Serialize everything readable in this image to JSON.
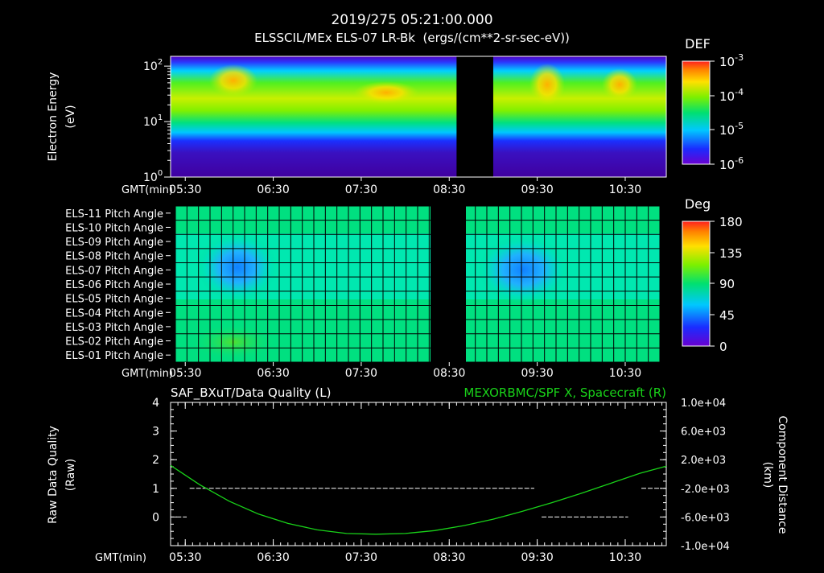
{
  "header": {
    "title": "2019/275 05:21:00.000",
    "subtitle": "ELSSCIL/MEx ELS-07 LR-Bk  (ergs/(cm**2-sr-sec-eV))"
  },
  "colors": {
    "background": "#000000",
    "text": "#ffffff",
    "green_trace": "#19d219",
    "quality_trace": "#ffffff"
  },
  "chart_data": [
    {
      "type": "heatmap",
      "name": "electron-energy-spectrogram",
      "ylabel": "Electron Energy",
      "yunits": "(eV)",
      "yscale": "log",
      "ylim": [
        1,
        150
      ],
      "y_ticks": [
        {
          "label": "10",
          "exp": "2",
          "value": 100
        },
        {
          "label": "10",
          "exp": "1",
          "value": 10
        },
        {
          "label": "10",
          "exp": "0",
          "value": 1
        }
      ],
      "xlabel": "GMT(min)",
      "xlim_min": [
        320,
        658
      ],
      "x_ticks": [
        {
          "label": "05:30",
          "min": 330
        },
        {
          "label": "06:30",
          "min": 390
        },
        {
          "label": "07:30",
          "min": 450
        },
        {
          "label": "08:30",
          "min": 510
        },
        {
          "label": "09:30",
          "min": 570
        },
        {
          "label": "10:30",
          "min": 630
        }
      ],
      "data_gap_min": [
        515,
        540
      ],
      "colorbar": {
        "label": "DEF",
        "ticks": [
          {
            "label": "10",
            "exp": "-3"
          },
          {
            "label": "10",
            "exp": "-4"
          },
          {
            "label": "10",
            "exp": "-5"
          },
          {
            "label": "10",
            "exp": "-6"
          }
        ]
      }
    },
    {
      "type": "heatmap",
      "name": "pitch-angle-grid",
      "rows": [
        "ELS-11 Pitch Angle",
        "ELS-10 Pitch Angle",
        "ELS-09 Pitch Angle",
        "ELS-08 Pitch Angle",
        "ELS-07 Pitch Angle",
        "ELS-06 Pitch Angle",
        "ELS-05 Pitch Angle",
        "ELS-04 Pitch Angle",
        "ELS-03 Pitch Angle",
        "ELS-02 Pitch Angle",
        "ELS-01 Pitch Angle"
      ],
      "xlabel": "GMT(min)",
      "xlim_min": [
        320,
        658
      ],
      "x_ticks": [
        {
          "label": "05:30",
          "min": 330
        },
        {
          "label": "06:30",
          "min": 390
        },
        {
          "label": "07:30",
          "min": 450
        },
        {
          "label": "08:30",
          "min": 510
        },
        {
          "label": "09:30",
          "min": 570
        },
        {
          "label": "10:30",
          "min": 630
        }
      ],
      "data_gap_min": [
        515,
        540
      ],
      "colorbar": {
        "label": "Deg",
        "range": [
          0,
          180
        ],
        "ticks": [
          "180",
          "135",
          "90",
          "45",
          "0"
        ]
      }
    },
    {
      "type": "line",
      "name": "data-quality-and-spacecraft-x",
      "title_left": "SAF_BXuT/Data Quality (L)",
      "title_right": "MEXORBMC/SPF X, Spacecraft (R)",
      "ylabel_left": "Raw Data Quality",
      "ylabel_left_units": "(Raw)",
      "ylim_left": [
        -1,
        4
      ],
      "yticks_left": [
        "4",
        "3",
        "2",
        "1",
        "0"
      ],
      "ylabel_right": "Component Distance",
      "ylabel_right_units": "(km)",
      "ylim_right": [
        -10000,
        10000
      ],
      "yticks_right": [
        "1.0e+04",
        "6.0e+03",
        "2.0e+03",
        "-2.0e+03",
        "-6.0e+03",
        "-1.0e+04"
      ],
      "xlabel": "GMT(min)",
      "xlim_min": [
        320,
        658
      ],
      "x_ticks": [
        {
          "label": "05:30",
          "min": 330
        },
        {
          "label": "06:30",
          "min": 390
        },
        {
          "label": "07:30",
          "min": 450
        },
        {
          "label": "08:30",
          "min": 510
        },
        {
          "label": "09:30",
          "min": 570
        },
        {
          "label": "10:30",
          "min": 630
        }
      ],
      "series": [
        {
          "name": "SAF_BXuT/Data Quality",
          "axis": "left",
          "segments": [
            {
              "x": [
                324,
                331
              ],
              "y": 0
            },
            {
              "x": [
                333,
                568
              ],
              "y": 1
            },
            {
              "x": [
                573,
                632
              ],
              "y": 0
            },
            {
              "x": [
                641,
                655
              ],
              "y": 1
            }
          ]
        },
        {
          "name": "MEXORBMC/SPF X, Spacecraft",
          "axis": "right",
          "x_min": [
            320,
            340,
            360,
            380,
            400,
            420,
            440,
            460,
            480,
            500,
            520,
            540,
            560,
            580,
            600,
            620,
            640,
            658
          ],
          "y_km": [
            1200,
            -1500,
            -3800,
            -5600,
            -6900,
            -7800,
            -8300,
            -8400,
            -8300,
            -7900,
            -7200,
            -6300,
            -5200,
            -4000,
            -2700,
            -1300,
            100,
            1100
          ]
        }
      ]
    }
  ]
}
